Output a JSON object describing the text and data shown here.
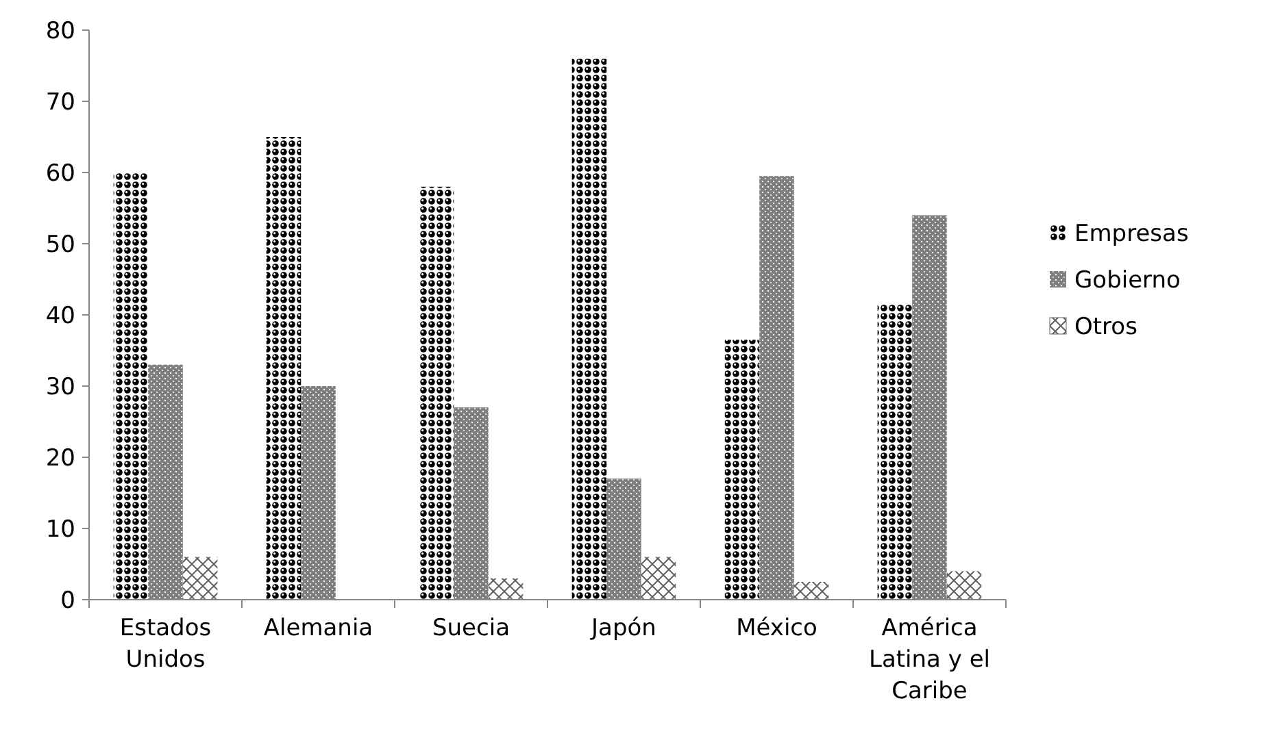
{
  "chart_data": {
    "type": "bar",
    "categories": [
      "Estados Unidos",
      "Alemania",
      "Suecia",
      "Japón",
      "México",
      "América Latina y el Caribe"
    ],
    "series": [
      {
        "name": "Empresas",
        "color": "#000000",
        "values": [
          60,
          65,
          58,
          76,
          36.5,
          41.5
        ]
      },
      {
        "name": "Gobierno",
        "color": "#808080",
        "values": [
          33,
          30,
          27,
          17,
          59.5,
          54
        ]
      },
      {
        "name": "Otros",
        "color": "#606060",
        "values": [
          6,
          0,
          3,
          6,
          2.5,
          4
        ]
      }
    ],
    "ylim": [
      0,
      80
    ],
    "yticks": [
      0,
      10,
      20,
      30,
      40,
      50,
      60,
      70,
      80
    ],
    "grid": false,
    "legend": "right"
  }
}
